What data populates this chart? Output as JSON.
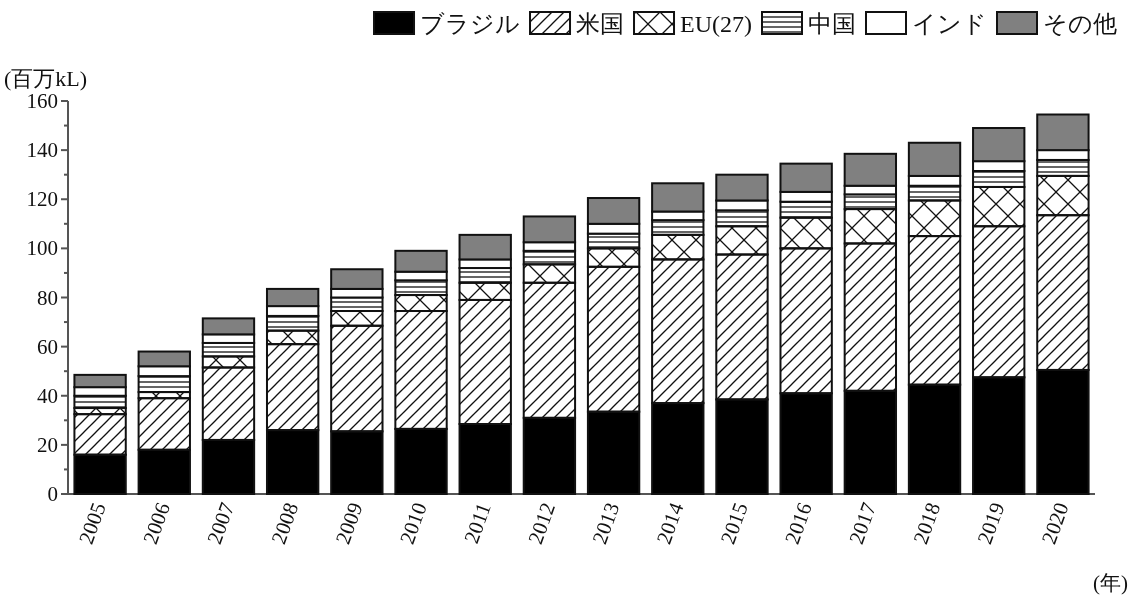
{
  "chart_data": {
    "type": "bar",
    "stacked": true,
    "ylabel": "(百万kL)",
    "xlabel": "(年)",
    "legend": "top",
    "grid": false,
    "categories": [
      "2005",
      "2006",
      "2007",
      "2008",
      "2009",
      "2010",
      "2011",
      "2012",
      "2013",
      "2014",
      "2015",
      "2016",
      "2017",
      "2018",
      "2019",
      "2020"
    ],
    "ylim": [
      0,
      160
    ],
    "yticks": [
      0,
      {
        "value": 10,
        "label": null
      },
      20,
      {
        "value": 30,
        "label": null
      },
      40,
      {
        "value": 50,
        "label": null
      },
      60,
      {
        "value": 70,
        "label": null
      },
      80,
      {
        "value": 90,
        "label": null
      },
      100,
      {
        "value": 110,
        "label": null
      },
      120,
      {
        "value": 130,
        "label": null
      },
      140,
      {
        "value": 150,
        "label": null
      },
      160
    ],
    "series": [
      {
        "name": "ブラジル",
        "color": "#000000",
        "values": [
          16,
          18,
          22,
          26,
          25.5,
          26.5,
          28.5,
          31,
          33.5,
          37,
          38.5,
          41,
          42,
          44.5,
          47.5,
          50.5
        ]
      },
      {
        "name": "米国",
        "color": "#111111",
        "values": [
          16.5,
          21,
          29.5,
          35,
          43,
          48,
          50.5,
          55,
          59,
          58.5,
          59,
          59,
          60,
          60.5,
          61.5,
          63
        ]
      },
      {
        "name": "EU(27)",
        "color": "#111111",
        "values": [
          2.5,
          2.5,
          4.5,
          5.5,
          6,
          6.5,
          7,
          7.5,
          7.5,
          10,
          11.5,
          12.5,
          14,
          14.5,
          16,
          16
        ]
      },
      {
        "name": "中国",
        "color": "#111111",
        "values": [
          5,
          6.5,
          5.5,
          6,
          5.5,
          6,
          6,
          5.5,
          6,
          6,
          6.5,
          6.5,
          6,
          6,
          6.5,
          6.5
        ]
      },
      {
        "name": "インド",
        "color": "#ffffff",
        "values": [
          3.5,
          4,
          3.5,
          4,
          3.5,
          3.5,
          3.5,
          3.5,
          4,
          3.5,
          4,
          4,
          3.5,
          4,
          4,
          4
        ]
      },
      {
        "name": "その他",
        "color": "#808080",
        "values": [
          5,
          6,
          6.5,
          7,
          8,
          8.5,
          10,
          10.5,
          10.5,
          11.5,
          10.5,
          11.5,
          13,
          13.5,
          13.5,
          14.5
        ]
      }
    ]
  }
}
